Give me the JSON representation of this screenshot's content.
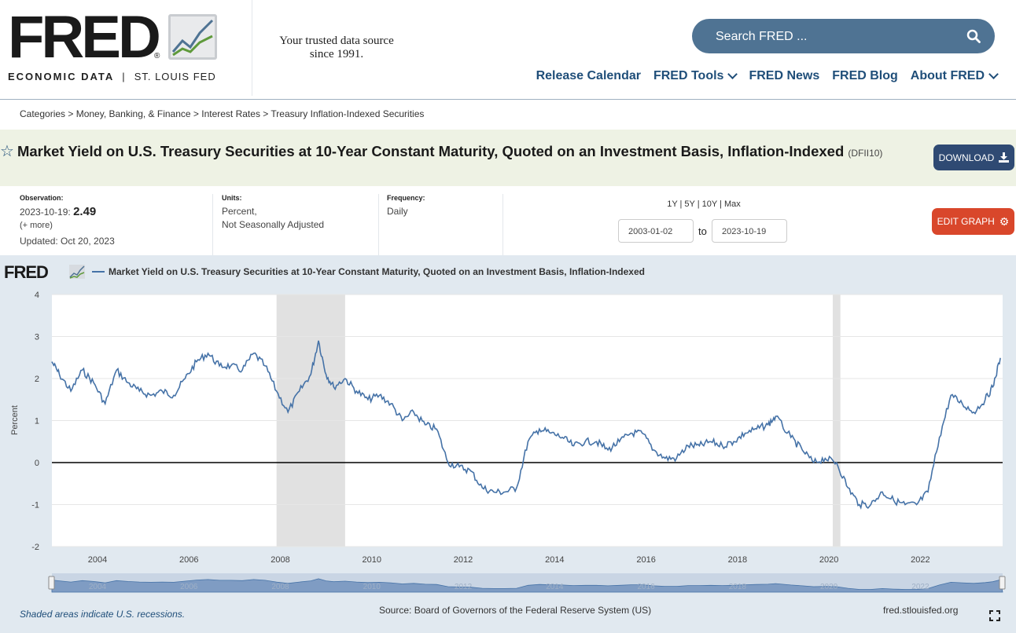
{
  "header": {
    "logo_text": "FRED",
    "logo_reg": "®",
    "logo_sub_main": "ECONOMIC DATA",
    "logo_sub_sep": "|",
    "logo_sub_org": "ST. LOUIS FED",
    "tagline_line1": "Your trusted data source",
    "tagline_line2": "since 1991.",
    "search_placeholder": "Search FRED ...",
    "nav": [
      "Release Calendar",
      "FRED Tools",
      "FRED News",
      "FRED Blog",
      "About FRED"
    ]
  },
  "breadcrumb": "Categories > Money, Banking, & Finance > Interest Rates > Treasury Inflation-Indexed Securities",
  "series": {
    "title": "Market Yield on U.S. Treasury Securities at 10-Year Constant Maturity, Quoted on an Investment Basis, Inflation-Indexed",
    "id": "(DFII10)",
    "download_label": "DOWNLOAD"
  },
  "meta": {
    "observation_label": "Observation:",
    "observation_date": "2023-10-19:",
    "observation_value": "2.49",
    "more": "(+ more)",
    "updated": "Updated: Oct 20, 2023",
    "units_label": "Units:",
    "units_line1": "Percent,",
    "units_line2": "Not Seasonally Adjusted",
    "frequency_label": "Frequency:",
    "frequency": "Daily",
    "ranges": "1Y | 5Y | 10Y | Max",
    "start_date": "2003-01-02",
    "to_label": "to",
    "end_date": "2023-10-19",
    "edit_label": "EDIT GRAPH"
  },
  "graph": {
    "logo_text": "FRED",
    "legend": "Market Yield on U.S. Treasury Securities at 10-Year Constant Maturity, Quoted on an Investment Basis, Inflation-Indexed",
    "note": "Shaded areas indicate U.S. recessions.",
    "source": "Source: Board of Governors of the Federal Reserve System (US)",
    "site": "fred.stlouisfed.org"
  },
  "colors": {
    "line": "#4572a7",
    "recession": "#e1e1e1",
    "plot_bg": "#e1e9f0",
    "download": "#2f4a73",
    "edit": "#d9472b",
    "nav": "#1f4e79"
  },
  "chart_data": {
    "type": "line",
    "ylabel": "Percent",
    "ylim": [
      -2,
      4
    ],
    "yticks": [
      -2,
      -1,
      0,
      1,
      2,
      3,
      4
    ],
    "xticks": [
      "2004",
      "2006",
      "2008",
      "2010",
      "2012",
      "2014",
      "2016",
      "2018",
      "2020",
      "2022"
    ],
    "xlim": [
      "2003-01-02",
      "2023-10-19"
    ],
    "recessions": [
      [
        "2007-12",
        "2009-06"
      ],
      [
        "2020-02",
        "2020-04"
      ]
    ],
    "series": [
      {
        "name": "Market Yield on U.S. Treasury Securities at 10-Year Constant Maturity, Quoted on an Investment Basis, Inflation-Indexed",
        "x": [
          "2003-01",
          "2003-03",
          "2003-06",
          "2003-09",
          "2003-12",
          "2004-03",
          "2004-06",
          "2004-09",
          "2004-12",
          "2005-03",
          "2005-06",
          "2005-09",
          "2005-12",
          "2006-03",
          "2006-06",
          "2006-09",
          "2006-12",
          "2007-03",
          "2007-06",
          "2007-09",
          "2007-12",
          "2008-03",
          "2008-06",
          "2008-09",
          "2008-11",
          "2009-01",
          "2009-03",
          "2009-06",
          "2009-09",
          "2009-12",
          "2010-03",
          "2010-06",
          "2010-09",
          "2010-12",
          "2011-03",
          "2011-06",
          "2011-09",
          "2011-12",
          "2012-03",
          "2012-06",
          "2012-09",
          "2012-12",
          "2013-03",
          "2013-06",
          "2013-09",
          "2013-12",
          "2014-03",
          "2014-06",
          "2014-09",
          "2014-12",
          "2015-03",
          "2015-06",
          "2015-09",
          "2015-12",
          "2016-03",
          "2016-06",
          "2016-09",
          "2016-12",
          "2017-03",
          "2017-06",
          "2017-09",
          "2017-12",
          "2018-03",
          "2018-06",
          "2018-09",
          "2018-11",
          "2019-03",
          "2019-06",
          "2019-09",
          "2019-12",
          "2020-03",
          "2020-06",
          "2020-09",
          "2020-12",
          "2021-03",
          "2021-06",
          "2021-09",
          "2021-12",
          "2022-03",
          "2022-06",
          "2022-09",
          "2022-12",
          "2023-03",
          "2023-06",
          "2023-08",
          "2023-10"
        ],
        "values": [
          2.4,
          2.1,
          1.7,
          2.2,
          1.9,
          1.4,
          2.2,
          1.9,
          1.7,
          1.6,
          1.7,
          1.6,
          2.0,
          2.4,
          2.6,
          2.3,
          2.3,
          2.2,
          2.6,
          2.3,
          1.7,
          1.2,
          1.7,
          2.1,
          2.9,
          2.1,
          1.8,
          2.0,
          1.7,
          1.5,
          1.6,
          1.4,
          1.0,
          1.2,
          0.9,
          0.8,
          0.0,
          -0.1,
          -0.2,
          -0.6,
          -0.7,
          -0.7,
          -0.6,
          0.5,
          0.8,
          0.7,
          0.6,
          0.4,
          0.5,
          0.5,
          0.3,
          0.5,
          0.7,
          0.7,
          0.3,
          0.1,
          0.1,
          0.4,
          0.4,
          0.5,
          0.4,
          0.5,
          0.7,
          0.8,
          0.9,
          1.1,
          0.6,
          0.3,
          0.0,
          0.1,
          0.0,
          -0.6,
          -1.0,
          -1.0,
          -0.7,
          -0.9,
          -1.0,
          -1.0,
          -0.7,
          0.6,
          1.6,
          1.4,
          1.2,
          1.5,
          1.8,
          2.49
        ]
      }
    ]
  }
}
